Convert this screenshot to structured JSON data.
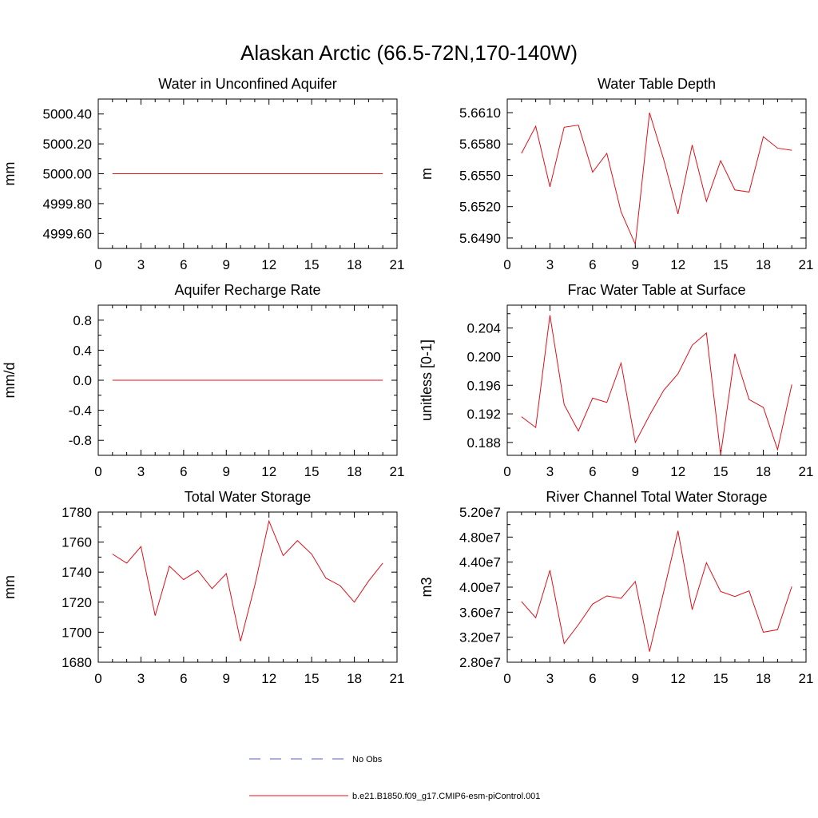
{
  "figure": {
    "title": "Alaskan Arctic (66.5-72N,170-140W)"
  },
  "legend": {
    "entries": [
      {
        "label": "No Obs",
        "color": "#5a5ad8",
        "dash": true
      },
      {
        "label": "b.e21.B1850.f09_g17.CMIP6-esm-piControl.001",
        "color": "#e0101a",
        "dash": false
      }
    ]
  },
  "chart_data": [
    {
      "type": "line",
      "title": "Water in Unconfined Aquifer",
      "xlabel": "",
      "ylabel": "mm",
      "xlim": [
        0,
        21
      ],
      "ylim": [
        4999.5,
        5000.5
      ],
      "xticks": [
        0,
        3,
        6,
        9,
        12,
        15,
        18,
        21
      ],
      "yticks": [
        4999.6,
        4999.8,
        5000.0,
        5000.2,
        5000.4
      ],
      "ytick_labels": [
        "4999.60",
        "4999.80",
        "5000.00",
        "5000.20",
        "5000.40"
      ],
      "series": [
        {
          "color": "#e0101a",
          "x": [
            1,
            2,
            3,
            4,
            5,
            6,
            7,
            8,
            9,
            10,
            11,
            12,
            13,
            14,
            15,
            16,
            17,
            18,
            19,
            20
          ],
          "y": [
            5000,
            5000,
            5000,
            5000,
            5000,
            5000,
            5000,
            5000,
            5000,
            5000,
            5000,
            5000,
            5000,
            5000,
            5000,
            5000,
            5000,
            5000,
            5000,
            5000
          ]
        }
      ]
    },
    {
      "type": "line",
      "title": "Water Table Depth",
      "xlabel": "",
      "ylabel": "m",
      "xlim": [
        0,
        21
      ],
      "ylim": [
        5.648,
        5.6623
      ],
      "xticks": [
        0,
        3,
        6,
        9,
        12,
        15,
        18,
        21
      ],
      "yticks": [
        5.649,
        5.652,
        5.655,
        5.658,
        5.661
      ],
      "ytick_labels": [
        "5.6490",
        "5.6520",
        "5.6550",
        "5.6580",
        "5.6610"
      ],
      "series": [
        {
          "color": "#e0101a",
          "x": [
            1,
            2,
            3,
            4,
            5,
            6,
            7,
            8,
            9,
            10,
            11,
            12,
            13,
            14,
            15,
            16,
            17,
            18,
            19,
            20
          ],
          "y": [
            5.6571,
            5.6597,
            5.6539,
            5.6596,
            5.6598,
            5.6553,
            5.6571,
            5.6515,
            5.6484,
            5.661,
            5.6565,
            5.6513,
            5.6579,
            5.6525,
            5.6564,
            5.6536,
            5.6534,
            5.6587,
            5.6576,
            5.6574
          ]
        }
      ]
    },
    {
      "type": "line",
      "title": "Aquifer Recharge Rate",
      "xlabel": "",
      "ylabel": "mm/d",
      "xlim": [
        0,
        21
      ],
      "ylim": [
        -1.0,
        1.0
      ],
      "xticks": [
        0,
        3,
        6,
        9,
        12,
        15,
        18,
        21
      ],
      "yticks": [
        -0.8,
        -0.4,
        0.0,
        0.4,
        0.8
      ],
      "ytick_labels": [
        "-0.8",
        "-0.4",
        "0.0",
        "0.4",
        "0.8"
      ],
      "series": [
        {
          "color": "#e0101a",
          "x": [
            1,
            2,
            3,
            4,
            5,
            6,
            7,
            8,
            9,
            10,
            11,
            12,
            13,
            14,
            15,
            16,
            17,
            18,
            19,
            20
          ],
          "y": [
            0,
            0,
            0,
            0,
            0,
            0,
            0,
            0,
            0,
            0,
            0,
            0,
            0,
            0,
            0,
            0,
            0,
            0,
            0,
            0
          ]
        }
      ]
    },
    {
      "type": "line",
      "title": "Frac Water Table at Surface",
      "xlabel": "",
      "ylabel": "unitless [0-1]",
      "xlim": [
        0,
        21
      ],
      "ylim": [
        0.1862,
        0.2072
      ],
      "xticks": [
        0,
        3,
        6,
        9,
        12,
        15,
        18,
        21
      ],
      "yticks": [
        0.188,
        0.192,
        0.196,
        0.2,
        0.204
      ],
      "ytick_labels": [
        "0.188",
        "0.192",
        "0.196",
        "0.200",
        "0.204"
      ],
      "series": [
        {
          "color": "#e0101a",
          "x": [
            1,
            2,
            3,
            4,
            5,
            6,
            7,
            8,
            9,
            10,
            11,
            12,
            13,
            14,
            15,
            16,
            17,
            18,
            19,
            20
          ],
          "y": [
            0.1916,
            0.1901,
            0.2058,
            0.1933,
            0.1896,
            0.1942,
            0.1936,
            0.1991,
            0.188,
            0.1918,
            0.1953,
            0.1976,
            0.2016,
            0.2033,
            0.1863,
            0.2004,
            0.194,
            0.1929,
            0.187,
            0.1961
          ]
        }
      ]
    },
    {
      "type": "line",
      "title": "Total Water Storage",
      "xlabel": "",
      "ylabel": "mm",
      "xlim": [
        0,
        21
      ],
      "ylim": [
        1680,
        1780
      ],
      "xticks": [
        0,
        3,
        6,
        9,
        12,
        15,
        18,
        21
      ],
      "yticks": [
        1680,
        1700,
        1720,
        1740,
        1760,
        1780
      ],
      "ytick_labels": [
        "1680",
        "1700",
        "1720",
        "1740",
        "1760",
        "1780"
      ],
      "series": [
        {
          "color": "#e0101a",
          "x": [
            1,
            2,
            3,
            4,
            5,
            6,
            7,
            8,
            9,
            10,
            11,
            12,
            13,
            14,
            15,
            16,
            17,
            18,
            19,
            20
          ],
          "y": [
            1752,
            1746,
            1757,
            1711,
            1744,
            1735,
            1741,
            1729,
            1739,
            1694,
            1731,
            1774,
            1751,
            1761,
            1752,
            1736,
            1731,
            1720,
            1734,
            1746
          ]
        }
      ]
    },
    {
      "type": "line",
      "title": "River Channel Total Water Storage",
      "xlabel": "",
      "ylabel": "m3",
      "xlim": [
        0,
        21
      ],
      "ylim": [
        28000000,
        52000000
      ],
      "xticks": [
        0,
        3,
        6,
        9,
        12,
        15,
        18,
        21
      ],
      "yticks": [
        28000000,
        32000000,
        36000000,
        40000000,
        44000000,
        48000000,
        52000000
      ],
      "ytick_labels": [
        "2.80e7",
        "3.20e7",
        "3.60e7",
        "4.00e7",
        "4.40e7",
        "4.80e7",
        "5.20e7"
      ],
      "series": [
        {
          "color": "#e0101a",
          "x": [
            1,
            2,
            3,
            4,
            5,
            6,
            7,
            8,
            9,
            10,
            11,
            12,
            13,
            14,
            15,
            16,
            17,
            18,
            19,
            20
          ],
          "y": [
            37700000,
            35100000,
            42700000,
            31000000,
            34000000,
            37300000,
            38600000,
            38200000,
            40900000,
            29700000,
            39300000,
            49000000,
            36400000,
            43900000,
            39300000,
            38500000,
            39400000,
            32800000,
            33200000,
            40100000
          ]
        }
      ]
    }
  ]
}
